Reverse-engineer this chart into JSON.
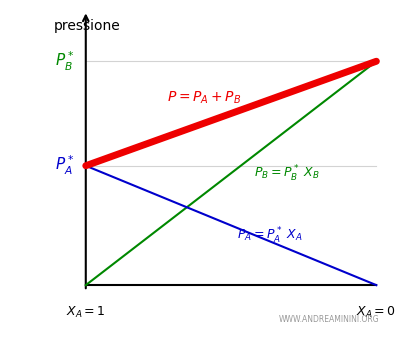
{
  "PA_star": 0.4,
  "PB_star": 0.75,
  "line_P_color": "#ee0000",
  "line_PB_color": "#008800",
  "line_PA_color": "#0000cc",
  "background_color": "#ffffff",
  "watermark": "WWW.ANDREAMININI.ORG",
  "figsize": [
    4.0,
    3.5
  ],
  "dpi": 100
}
